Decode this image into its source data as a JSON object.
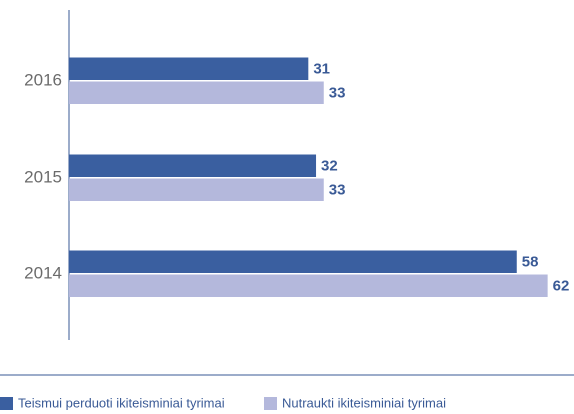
{
  "chart_data": {
    "type": "bar",
    "orientation": "horizontal",
    "categories": [
      "2016",
      "2015",
      "2014"
    ],
    "series": [
      {
        "name": "Teismui perduoti ikiteisminiai tyrimai",
        "color": "#3a5fa0",
        "values": [
          31,
          32,
          58
        ]
      },
      {
        "name": "Nutraukti ikiteisminiai tyrimai",
        "color": "#b4b8dc",
        "values": [
          33,
          33,
          62
        ]
      }
    ],
    "legend": "bottom"
  }
}
